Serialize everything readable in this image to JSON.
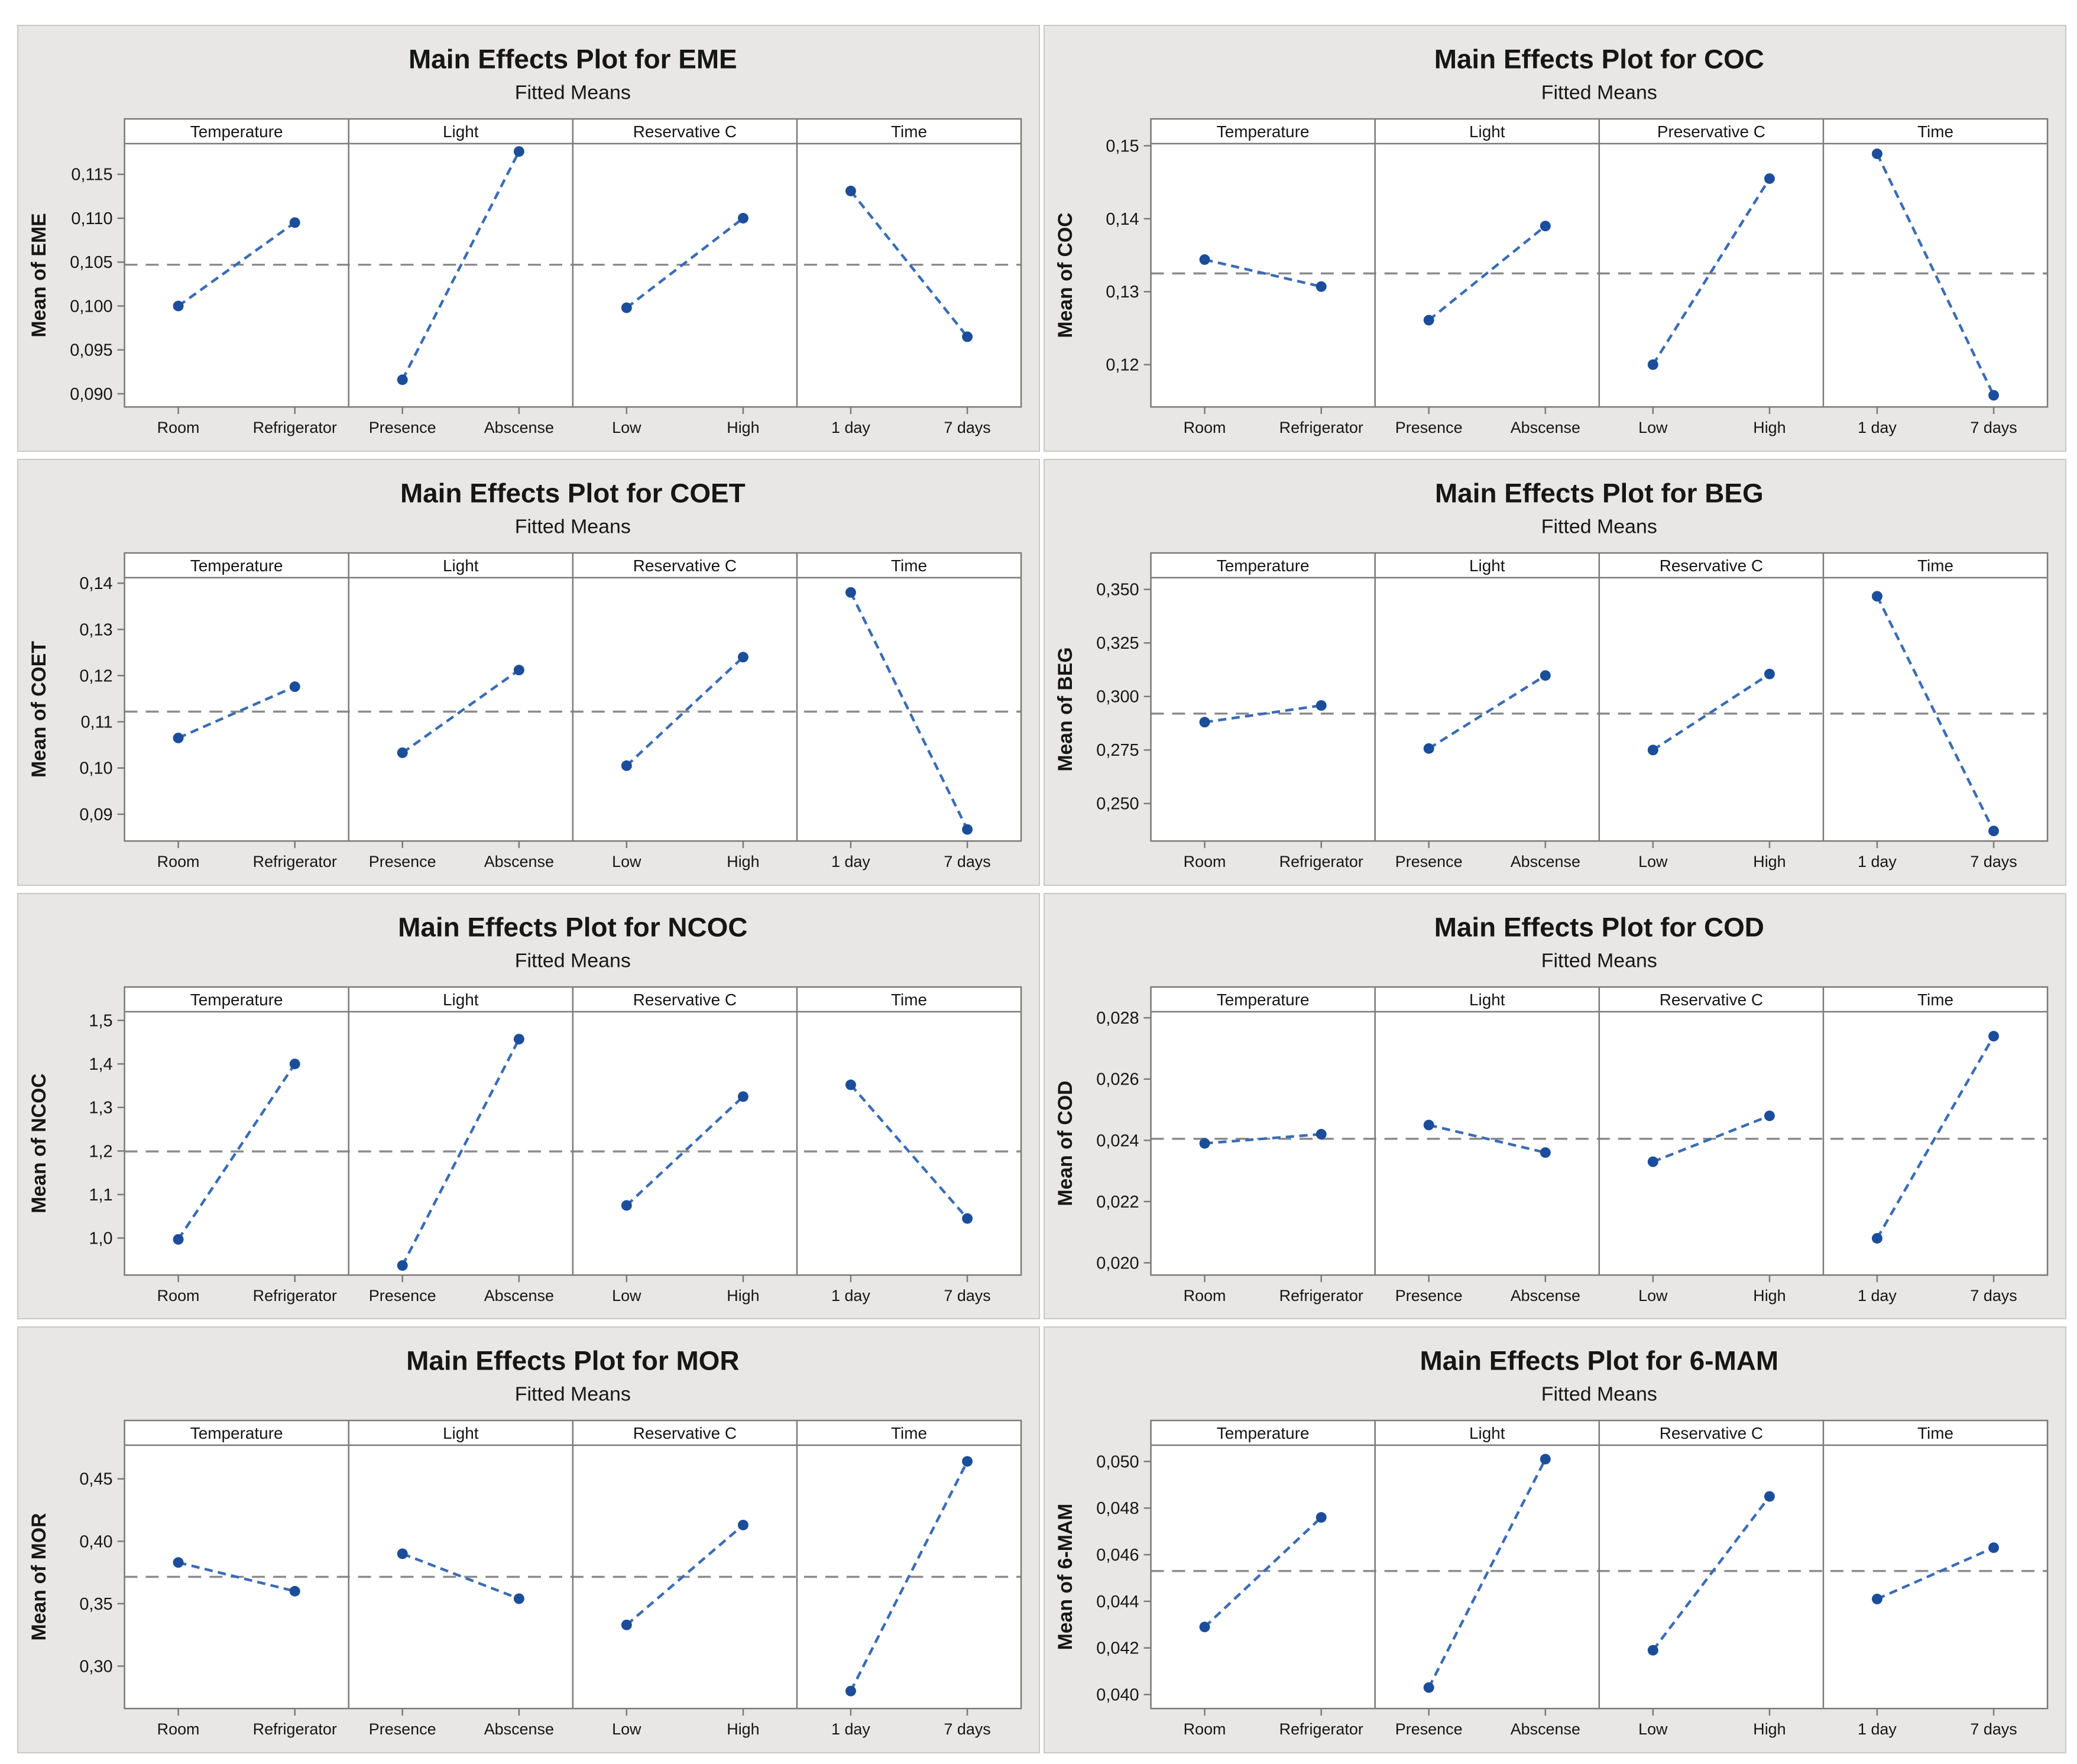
{
  "page": {
    "description": "Grid of eight Minitab main effects plots",
    "colors": {
      "line": "#3a6cb4",
      "marker": "#1b4d9b",
      "ref_line": "#8c8c8c",
      "chart_bg": "#e8e7e5",
      "panel_bg": "#ffffff",
      "frame": "#7a7a78",
      "text": "#161616"
    }
  },
  "chart_data": [
    {
      "type": "line",
      "title": "Main Effects Plot for EME",
      "subtitle": "Fitted Means",
      "ylabel": "Mean of EME",
      "ylim": [
        0.0885,
        0.1185
      ],
      "yticks": [
        0.09,
        0.095,
        0.1,
        0.105,
        0.11,
        0.115
      ],
      "ytick_labels": [
        "0,090",
        "0,095",
        "0,100",
        "0,105",
        "0,110",
        "0,115"
      ],
      "ref_line": 0.1047,
      "grid": false,
      "panels": [
        {
          "label": "Temperature",
          "categories": [
            "Room",
            "Refrigerator"
          ],
          "values": [
            0.1,
            0.1095
          ]
        },
        {
          "label": "Light",
          "categories": [
            "Presence",
            "Abscense"
          ],
          "values": [
            0.0916,
            0.1176
          ]
        },
        {
          "label": "Reservative C",
          "categories": [
            "Low",
            "High"
          ],
          "values": [
            0.0998,
            0.11
          ]
        },
        {
          "label": "Time",
          "categories": [
            "1 day",
            "7 days"
          ],
          "values": [
            0.1131,
            0.0965
          ]
        }
      ]
    },
    {
      "type": "line",
      "title": "Main Effects Plot for COC",
      "subtitle": "Fitted Means",
      "ylabel": "Mean of COC",
      "ylim": [
        0.1142,
        0.1503
      ],
      "yticks": [
        0.12,
        0.13,
        0.14,
        0.15
      ],
      "ytick_labels": [
        "0,12",
        "0,13",
        "0,14",
        "0,15"
      ],
      "ref_line": 0.1325,
      "grid": false,
      "panels": [
        {
          "label": "Temperature",
          "categories": [
            "Room",
            "Refrigerator"
          ],
          "values": [
            0.1344,
            0.1307
          ]
        },
        {
          "label": "Light",
          "categories": [
            "Presence",
            "Abscense"
          ],
          "values": [
            0.1261,
            0.139
          ]
        },
        {
          "label": "Preservative C",
          "categories": [
            "Low",
            "High"
          ],
          "values": [
            0.12,
            0.1455
          ]
        },
        {
          "label": "Time",
          "categories": [
            "1 day",
            "7 days"
          ],
          "values": [
            0.1489,
            0.1158
          ]
        }
      ]
    },
    {
      "type": "line",
      "title": "Main Effects Plot for COET",
      "subtitle": "Fitted Means",
      "ylabel": "Mean of COET",
      "ylim": [
        0.0842,
        0.1412
      ],
      "yticks": [
        0.09,
        0.1,
        0.11,
        0.12,
        0.13,
        0.14
      ],
      "ytick_labels": [
        "0,09",
        "0,10",
        "0,11",
        "0,12",
        "0,13",
        "0,14"
      ],
      "ref_line": 0.1122,
      "grid": false,
      "panels": [
        {
          "label": "Temperature",
          "categories": [
            "Room",
            "Refrigerator"
          ],
          "values": [
            0.1065,
            0.1176
          ]
        },
        {
          "label": "Light",
          "categories": [
            "Presence",
            "Abscense"
          ],
          "values": [
            0.1033,
            0.1212
          ]
        },
        {
          "label": "Reservative C",
          "categories": [
            "Low",
            "High"
          ],
          "values": [
            0.1005,
            0.124
          ]
        },
        {
          "label": "Time",
          "categories": [
            "1 day",
            "7 days"
          ],
          "values": [
            0.138,
            0.0867
          ]
        }
      ]
    },
    {
      "type": "line",
      "title": "Main Effects Plot for BEG",
      "subtitle": "Fitted Means",
      "ylabel": "Mean of BEG",
      "ylim": [
        0.2325,
        0.3555
      ],
      "yticks": [
        0.25,
        0.275,
        0.3,
        0.325,
        0.35
      ],
      "ytick_labels": [
        "0,250",
        "0,275",
        "0,300",
        "0,325",
        "0,350"
      ],
      "ref_line": 0.292,
      "grid": false,
      "panels": [
        {
          "label": "Temperature",
          "categories": [
            "Room",
            "Refrigerator"
          ],
          "values": [
            0.288,
            0.2958
          ]
        },
        {
          "label": "Light",
          "categories": [
            "Presence",
            "Abscense"
          ],
          "values": [
            0.2757,
            0.3098
          ]
        },
        {
          "label": "Reservative C",
          "categories": [
            "Low",
            "High"
          ],
          "values": [
            0.275,
            0.3105
          ]
        },
        {
          "label": "Time",
          "categories": [
            "1 day",
            "7 days"
          ],
          "values": [
            0.3468,
            0.2372
          ]
        }
      ]
    },
    {
      "type": "line",
      "title": "Main Effects Plot for NCOC",
      "subtitle": "Fitted Means",
      "ylabel": "Mean of NCOC",
      "ylim": [
        0.915,
        1.52
      ],
      "yticks": [
        1.0,
        1.1,
        1.2,
        1.3,
        1.4,
        1.5
      ],
      "ytick_labels": [
        "1,0",
        "1,1",
        "1,2",
        "1,3",
        "1,4",
        "1,5"
      ],
      "ref_line": 1.199,
      "grid": false,
      "panels": [
        {
          "label": "Temperature",
          "categories": [
            "Room",
            "Refrigerator"
          ],
          "values": [
            0.997,
            1.4
          ]
        },
        {
          "label": "Light",
          "categories": [
            "Presence",
            "Abscense"
          ],
          "values": [
            0.937,
            1.457
          ]
        },
        {
          "label": "Reservative C",
          "categories": [
            "Low",
            "High"
          ],
          "values": [
            1.075,
            1.325
          ]
        },
        {
          "label": "Time",
          "categories": [
            "1 day",
            "7 days"
          ],
          "values": [
            1.352,
            1.045
          ]
        }
      ]
    },
    {
      "type": "line",
      "title": "Main Effects Plot for COD",
      "subtitle": "Fitted Means",
      "ylabel": "Mean of COD",
      "ylim": [
        0.0196,
        0.0282
      ],
      "yticks": [
        0.02,
        0.022,
        0.024,
        0.026,
        0.028
      ],
      "ytick_labels": [
        "0,020",
        "0,022",
        "0,024",
        "0,026",
        "0,028"
      ],
      "ref_line": 0.02405,
      "grid": false,
      "panels": [
        {
          "label": "Temperature",
          "categories": [
            "Room",
            "Refrigerator"
          ],
          "values": [
            0.0239,
            0.0242
          ]
        },
        {
          "label": "Light",
          "categories": [
            "Presence",
            "Abscense"
          ],
          "values": [
            0.0245,
            0.0236
          ]
        },
        {
          "label": "Reservative C",
          "categories": [
            "Low",
            "High"
          ],
          "values": [
            0.0233,
            0.0248
          ]
        },
        {
          "label": "Time",
          "categories": [
            "1 day",
            "7 days"
          ],
          "values": [
            0.0208,
            0.0274
          ]
        }
      ]
    },
    {
      "type": "line",
      "title": "Main Effects Plot for MOR",
      "subtitle": "Fitted Means",
      "ylabel": "Mean of MOR",
      "ylim": [
        0.266,
        0.477
      ],
      "yticks": [
        0.3,
        0.35,
        0.4,
        0.45
      ],
      "ytick_labels": [
        "0,30",
        "0,35",
        "0,40",
        "0,45"
      ],
      "ref_line": 0.3715,
      "grid": false,
      "panels": [
        {
          "label": "Temperature",
          "categories": [
            "Room",
            "Refrigerator"
          ],
          "values": [
            0.383,
            0.36
          ]
        },
        {
          "label": "Light",
          "categories": [
            "Presence",
            "Abscense"
          ],
          "values": [
            0.39,
            0.354
          ]
        },
        {
          "label": "Reservative C",
          "categories": [
            "Low",
            "High"
          ],
          "values": [
            0.333,
            0.413
          ]
        },
        {
          "label": "Time",
          "categories": [
            "1 day",
            "7 days"
          ],
          "values": [
            0.28,
            0.464
          ]
        }
      ]
    },
    {
      "type": "line",
      "title": "Main Effects Plot for 6-MAM",
      "subtitle": "Fitted Means",
      "ylabel": "Mean of 6-MAM",
      "ylim": [
        0.0394,
        0.0507
      ],
      "yticks": [
        0.04,
        0.042,
        0.044,
        0.046,
        0.048,
        0.05
      ],
      "ytick_labels": [
        "0,040",
        "0,042",
        "0,044",
        "0,046",
        "0,048",
        "0,050"
      ],
      "ref_line": 0.0453,
      "grid": false,
      "panels": [
        {
          "label": "Temperature",
          "categories": [
            "Room",
            "Refrigerator"
          ],
          "values": [
            0.0429,
            0.0476
          ]
        },
        {
          "label": "Light",
          "categories": [
            "Presence",
            "Abscense"
          ],
          "values": [
            0.0403,
            0.0501
          ]
        },
        {
          "label": "Reservative C",
          "categories": [
            "Low",
            "High"
          ],
          "values": [
            0.0419,
            0.0485
          ]
        },
        {
          "label": "Time",
          "categories": [
            "1 day",
            "7 days"
          ],
          "values": [
            0.0441,
            0.0463
          ]
        }
      ]
    }
  ]
}
